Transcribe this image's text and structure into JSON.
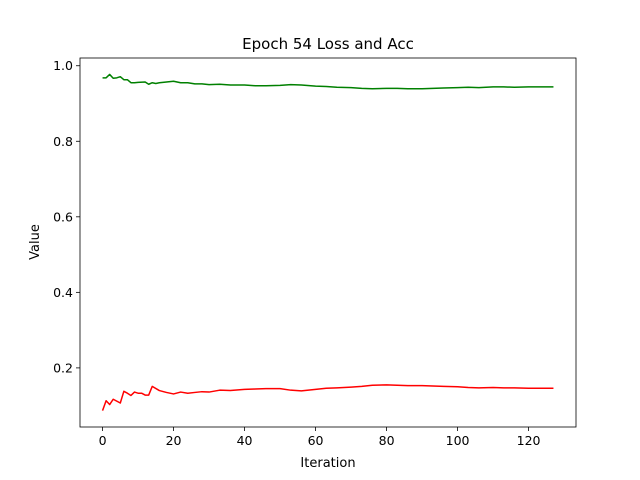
{
  "chart_data": {
    "type": "line",
    "title": "Epoch 54 Loss and Acc",
    "xlabel": "Iteration",
    "ylabel": "Value",
    "xlim": [
      -6.35,
      133.35
    ],
    "ylim": [
      0.0435,
      1.0205
    ],
    "xticks": [
      0,
      20,
      40,
      60,
      80,
      100,
      120
    ],
    "yticks": [
      0.2,
      0.4,
      0.6,
      0.8,
      1.0
    ],
    "ytick_labels": [
      "0.2",
      "0.4",
      "0.6",
      "0.8",
      "1.0"
    ],
    "grid": false,
    "legend": "none",
    "series": [
      {
        "color": "#008000",
        "x": [
          0,
          1,
          2,
          3,
          4,
          5,
          6,
          7,
          8,
          9,
          10,
          12,
          13,
          14,
          15,
          16,
          18,
          20,
          22,
          24,
          26,
          28,
          30,
          33,
          36,
          40,
          43,
          46,
          50,
          53,
          56,
          60,
          63,
          66,
          70,
          73,
          76,
          80,
          83,
          86,
          90,
          93,
          96,
          100,
          103,
          106,
          110,
          113,
          116,
          120,
          123,
          127
        ],
        "values": [
          0.968,
          0.968,
          0.977,
          0.967,
          0.968,
          0.971,
          0.963,
          0.963,
          0.955,
          0.955,
          0.956,
          0.957,
          0.951,
          0.955,
          0.953,
          0.955,
          0.957,
          0.959,
          0.955,
          0.955,
          0.952,
          0.952,
          0.95,
          0.951,
          0.949,
          0.949,
          0.947,
          0.947,
          0.948,
          0.95,
          0.949,
          0.946,
          0.945,
          0.943,
          0.942,
          0.94,
          0.939,
          0.94,
          0.94,
          0.939,
          0.939,
          0.94,
          0.941,
          0.942,
          0.943,
          0.942,
          0.944,
          0.944,
          0.943,
          0.944,
          0.944,
          0.944
        ]
      },
      {
        "color": "#ff0000",
        "x": [
          0,
          1,
          2,
          3,
          4,
          5,
          6,
          7,
          8,
          9,
          10,
          11,
          12,
          13,
          14,
          16,
          18,
          20,
          22,
          24,
          26,
          28,
          30,
          33,
          36,
          40,
          43,
          46,
          50,
          53,
          56,
          60,
          63,
          66,
          70,
          73,
          76,
          80,
          83,
          86,
          90,
          93,
          96,
          100,
          103,
          106,
          110,
          113,
          116,
          120,
          123,
          127
        ],
        "values": [
          0.087,
          0.113,
          0.103,
          0.117,
          0.112,
          0.107,
          0.138,
          0.133,
          0.127,
          0.136,
          0.133,
          0.133,
          0.128,
          0.128,
          0.151,
          0.14,
          0.135,
          0.131,
          0.136,
          0.133,
          0.135,
          0.137,
          0.136,
          0.141,
          0.14,
          0.143,
          0.144,
          0.145,
          0.145,
          0.141,
          0.139,
          0.143,
          0.146,
          0.147,
          0.149,
          0.151,
          0.154,
          0.155,
          0.154,
          0.153,
          0.153,
          0.152,
          0.151,
          0.15,
          0.148,
          0.147,
          0.148,
          0.147,
          0.147,
          0.146,
          0.146,
          0.146
        ]
      }
    ]
  }
}
